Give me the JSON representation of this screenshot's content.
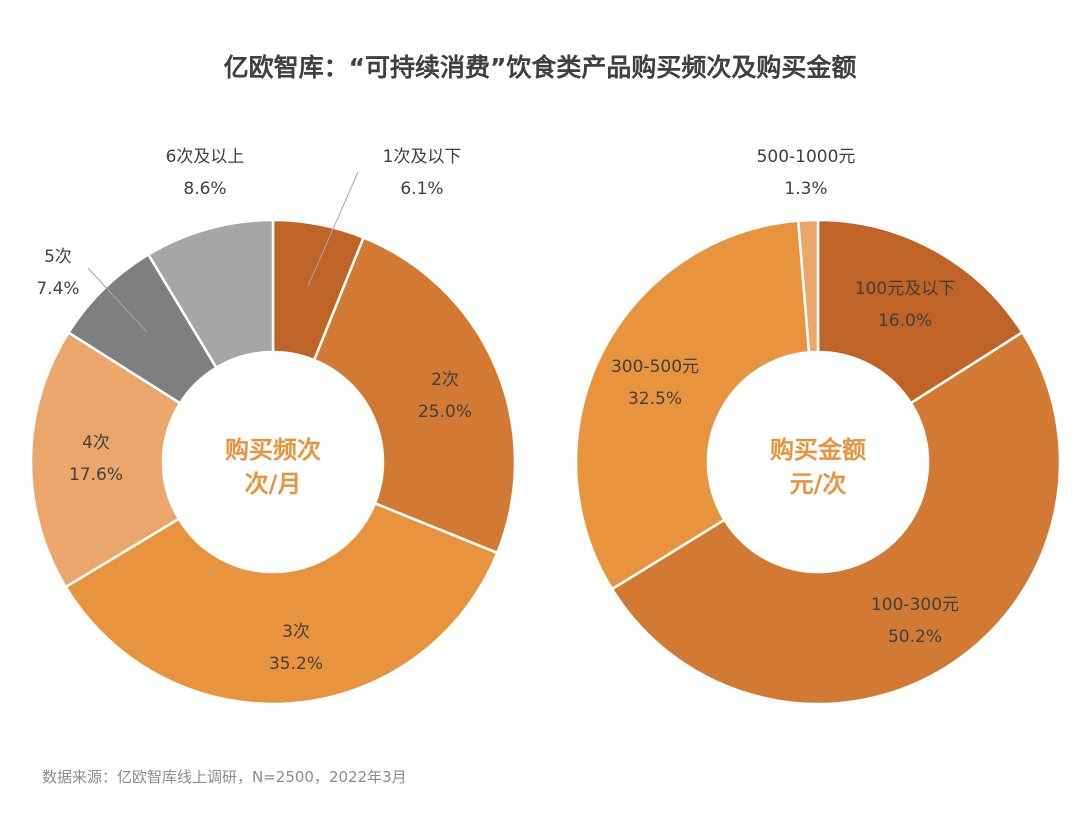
{
  "title": "亿欧智库：“可持续消费”饮食类产品购买频次及购买金额",
  "footer": "数据来源：亿欧智库线上调研，N=2500，2022年3月",
  "chart_data": [
    {
      "type": "pie",
      "variant": "donut",
      "name": "购买频次",
      "center_label": [
        "购买频次",
        "次/月"
      ],
      "categories": [
        "1次及以下",
        "2次",
        "3次",
        "4次",
        "5次",
        "6次及以上"
      ],
      "values": [
        6.1,
        25.0,
        35.2,
        17.6,
        7.4,
        8.6
      ],
      "value_labels": [
        "6.1%",
        "25.0%",
        "35.2%",
        "17.6%",
        "7.4%",
        "8.6%"
      ],
      "colors": [
        "#bf6426",
        "#d27a34",
        "#e8943f",
        "#eba66b",
        "#7f7f7f",
        "#a6a6a6"
      ]
    },
    {
      "type": "pie",
      "variant": "donut",
      "name": "购买金额",
      "center_label": [
        "购买金额",
        "元/次"
      ],
      "categories": [
        "100元及以下",
        "100-300元",
        "300-500元",
        "500-1000元"
      ],
      "values": [
        16.0,
        50.2,
        32.5,
        1.3
      ],
      "value_labels": [
        "16.0%",
        "50.2%",
        "32.5%",
        "1.3%"
      ],
      "colors": [
        "#bf6426",
        "#d27a34",
        "#e8943f",
        "#eba66b"
      ]
    }
  ]
}
